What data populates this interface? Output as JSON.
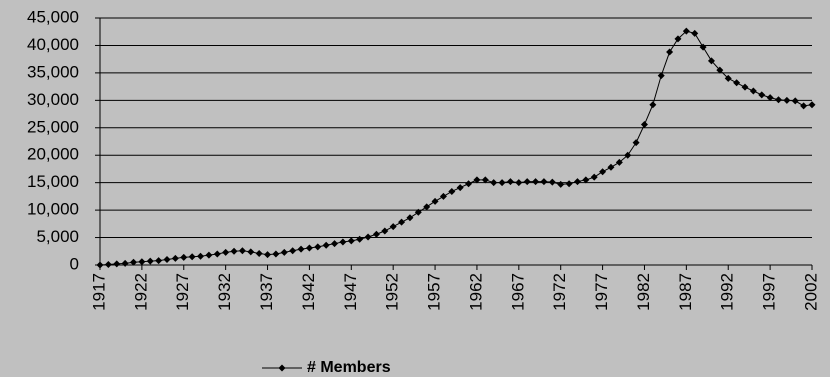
{
  "chart_data": {
    "type": "line",
    "x": [
      1917,
      1918,
      1919,
      1920,
      1921,
      1922,
      1923,
      1924,
      1925,
      1926,
      1927,
      1928,
      1929,
      1930,
      1931,
      1932,
      1933,
      1934,
      1935,
      1936,
      1937,
      1938,
      1939,
      1940,
      1941,
      1942,
      1943,
      1944,
      1945,
      1946,
      1947,
      1948,
      1949,
      1950,
      1951,
      1952,
      1953,
      1954,
      1955,
      1956,
      1957,
      1958,
      1959,
      1960,
      1961,
      1962,
      1963,
      1964,
      1965,
      1966,
      1967,
      1968,
      1969,
      1970,
      1971,
      1972,
      1973,
      1974,
      1975,
      1976,
      1977,
      1978,
      1979,
      1980,
      1981,
      1982,
      1983,
      1984,
      1985,
      1986,
      1987,
      1988,
      1989,
      1990,
      1991,
      1992,
      1993,
      1994,
      1995,
      1996,
      1997,
      1998,
      1999,
      2000,
      2001,
      2002
    ],
    "series": [
      {
        "name": "# Members",
        "color": "#000000",
        "values": [
          0,
          100,
          200,
          300,
          500,
          600,
          700,
          800,
          1000,
          1200,
          1400,
          1500,
          1600,
          1800,
          2000,
          2300,
          2500,
          2600,
          2400,
          2100,
          1900,
          2000,
          2300,
          2600,
          2900,
          3100,
          3300,
          3600,
          3900,
          4200,
          4400,
          4700,
          5100,
          5600,
          6200,
          7000,
          7800,
          8600,
          9600,
          10600,
          11600,
          12500,
          13400,
          14100,
          14800,
          15500,
          15500,
          15000,
          15000,
          15200,
          15000,
          15200,
          15200,
          15200,
          15100,
          14700,
          14800,
          15200,
          15500,
          16000,
          17000,
          17800,
          18700,
          20000,
          22300,
          25600,
          29200,
          34500,
          38800,
          41200,
          42600,
          42200,
          39700,
          37200,
          35500,
          34000,
          33200,
          32400,
          31700,
          31000,
          30500,
          30100,
          30000,
          29900,
          29000,
          29200
        ]
      }
    ],
    "xlim": [
      1917,
      2002
    ],
    "xticks": [
      1917,
      1922,
      1927,
      1932,
      1937,
      1942,
      1947,
      1952,
      1957,
      1962,
      1967,
      1972,
      1977,
      1982,
      1987,
      1992,
      1997,
      2002
    ],
    "ylim": [
      0,
      45000
    ],
    "yticks": [
      0,
      {
        "value": 5000,
        "label": "5,000"
      },
      {
        "value": 10000,
        "label": "10,000"
      },
      {
        "value": 15000,
        "label": "15,000"
      },
      {
        "value": 20000,
        "label": "20,000"
      },
      {
        "value": 25000,
        "label": "25,000"
      },
      {
        "value": 30000,
        "label": "30,000"
      },
      {
        "value": 35000,
        "label": "35,000"
      },
      {
        "value": 40000,
        "label": "40,000"
      },
      {
        "value": 45000,
        "label": "45,000"
      }
    ],
    "grid": true,
    "legend": "bottom"
  }
}
